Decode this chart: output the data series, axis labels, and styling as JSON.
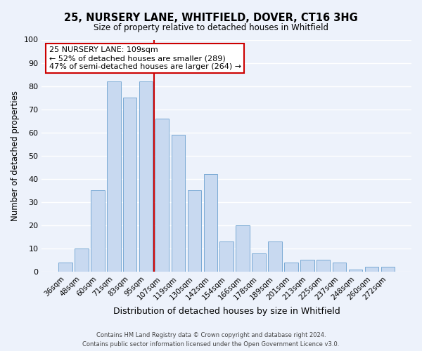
{
  "title": "25, NURSERY LANE, WHITFIELD, DOVER, CT16 3HG",
  "subtitle": "Size of property relative to detached houses in Whitfield",
  "xlabel": "Distribution of detached houses by size in Whitfield",
  "ylabel": "Number of detached properties",
  "bar_labels": [
    "36sqm",
    "48sqm",
    "60sqm",
    "71sqm",
    "83sqm",
    "95sqm",
    "107sqm",
    "119sqm",
    "130sqm",
    "142sqm",
    "154sqm",
    "166sqm",
    "178sqm",
    "189sqm",
    "201sqm",
    "213sqm",
    "225sqm",
    "237sqm",
    "248sqm",
    "260sqm",
    "272sqm"
  ],
  "bar_values": [
    4,
    10,
    35,
    82,
    75,
    82,
    66,
    59,
    35,
    42,
    13,
    20,
    8,
    13,
    4,
    5,
    5,
    4,
    1,
    2,
    2
  ],
  "bar_color": "#c8d9f0",
  "bar_edge_color": "#7aaad4",
  "background_color": "#edf2fb",
  "grid_color": "#ffffff",
  "ylim": [
    0,
    100
  ],
  "yticks": [
    0,
    10,
    20,
    30,
    40,
    50,
    60,
    70,
    80,
    90,
    100
  ],
  "vline_x_index": 5,
  "vline_color": "#cc0000",
  "annotation_title": "25 NURSERY LANE: 109sqm",
  "annotation_line1": "← 52% of detached houses are smaller (289)",
  "annotation_line2": "47% of semi-detached houses are larger (264) →",
  "annotation_box_color": "#ffffff",
  "annotation_box_edge": "#cc0000",
  "footer1": "Contains HM Land Registry data © Crown copyright and database right 2024.",
  "footer2": "Contains public sector information licensed under the Open Government Licence v3.0."
}
